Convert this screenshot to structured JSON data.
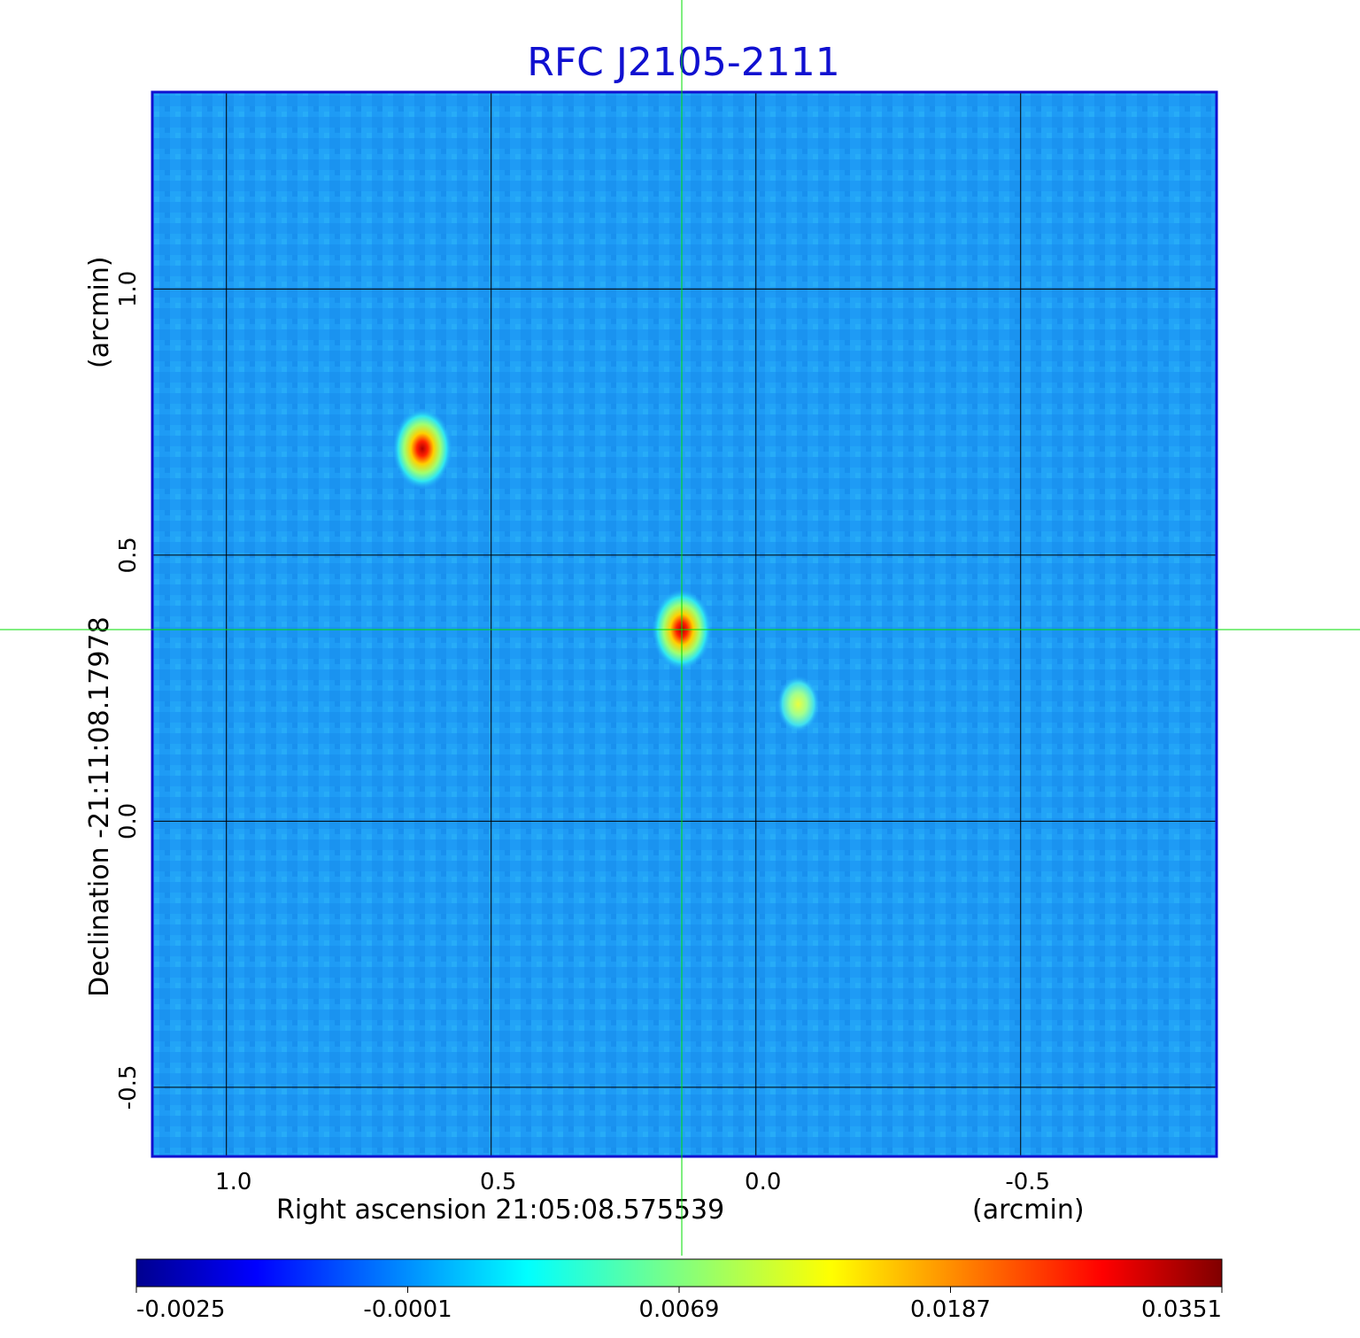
{
  "chart_data": {
    "type": "heatmap",
    "title": "RFC J2105-2111",
    "xlabel": "Right ascension  21:05:08.575539",
    "xunit": "(arcmin)",
    "ylabel": "Declination  -21:11:08.17978",
    "yunit": "(arcmin)",
    "x_ticks": [
      "1.0",
      "0.5",
      "0.0",
      "-0.5"
    ],
    "x_tick_values": [
      1.0,
      0.5,
      0.0,
      -0.5
    ],
    "y_ticks": [
      "1.0",
      "0.5",
      "0.0",
      "-0.5"
    ],
    "y_tick_values": [
      1.0,
      0.5,
      0.0,
      -0.5
    ],
    "xlim": [
      1.14,
      -0.87
    ],
    "ylim": [
      -0.63,
      1.37
    ],
    "grid": true,
    "crosshair": {
      "x": 0.14,
      "y": 0.36
    },
    "colormap": "jet",
    "colorbar": {
      "ticks": [
        "-0.0025",
        "-0.0001",
        "0.0069",
        "0.0187",
        "0.0351"
      ],
      "range": [
        -0.0025,
        0.0351
      ]
    },
    "sources": [
      {
        "x": 0.63,
        "y": 0.7,
        "peak": 0.0351
      },
      {
        "x": 0.14,
        "y": 0.36,
        "peak": 0.0351
      },
      {
        "x": -0.08,
        "y": 0.22,
        "peak": 0.012
      }
    ]
  },
  "colors": {
    "title": "#1010d0",
    "frame": "#1010d0",
    "crosshair": "#00dd00",
    "grid": "#000000"
  }
}
